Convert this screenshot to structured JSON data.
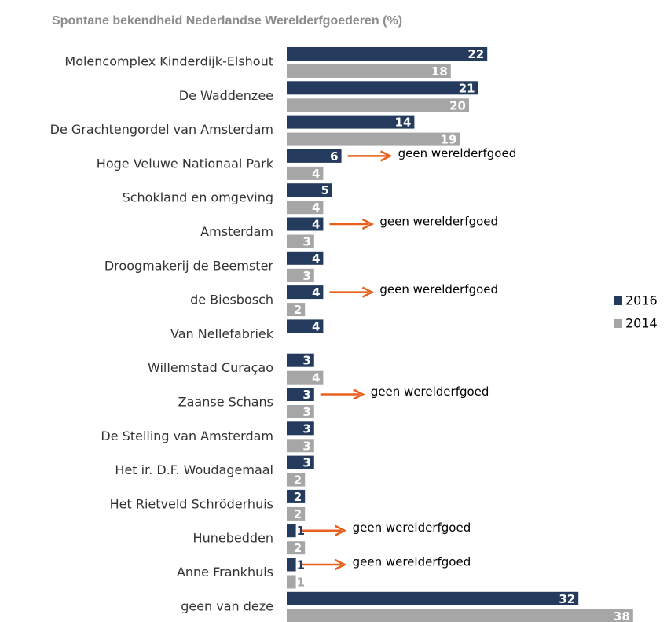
{
  "chart_data": {
    "type": "bar",
    "orientation": "horizontal",
    "title": "Spontane bekendheid Nederlandse Werelderfgoederen (%)",
    "categories": [
      "Molencomplex Kinderdijk-Elshout",
      "De Waddenzee",
      "De Grachtengordel van Amsterdam",
      "Hoge Veluwe Nationaal Park",
      "Schokland en omgeving",
      "Amsterdam",
      "Droogmakerij de Beemster",
      "de Biesbosch",
      "Van Nellefabriek",
      "Willemstad Curaçao",
      "Zaanse Schans",
      "De Stelling van Amsterdam",
      "Het ir. D.F. Woudagemaal",
      "Het Rietveld Schröderhuis",
      "Hunebedden",
      "Anne Frankhuis",
      "geen van deze"
    ],
    "series": [
      {
        "name": "2016",
        "color": "#243b5e",
        "values": [
          22,
          21,
          14,
          6,
          5,
          4,
          4,
          4,
          4,
          3,
          3,
          3,
          3,
          2,
          1,
          1,
          32
        ]
      },
      {
        "name": "2014",
        "color": "#a6a6a6",
        "values": [
          18,
          20,
          19,
          4,
          4,
          3,
          3,
          2,
          null,
          4,
          3,
          3,
          2,
          2,
          2,
          1,
          38
        ]
      }
    ],
    "annotations": [
      {
        "category": "Hoge Veluwe Nationaal Park",
        "text": "geen werelderfgoed"
      },
      {
        "category": "Amsterdam",
        "text": "geen werelderfgoed"
      },
      {
        "category": "de Biesbosch",
        "text": "geen werelderfgoed"
      },
      {
        "category": "Zaanse Schans",
        "text": "geen werelderfgoed"
      },
      {
        "category": "Hunebedden",
        "text": "geen werelderfgoed"
      },
      {
        "category": "Anne Frankhuis",
        "text": "geen werelderfgoed"
      }
    ],
    "annotation_color": "#e8601c",
    "legend": "right"
  }
}
